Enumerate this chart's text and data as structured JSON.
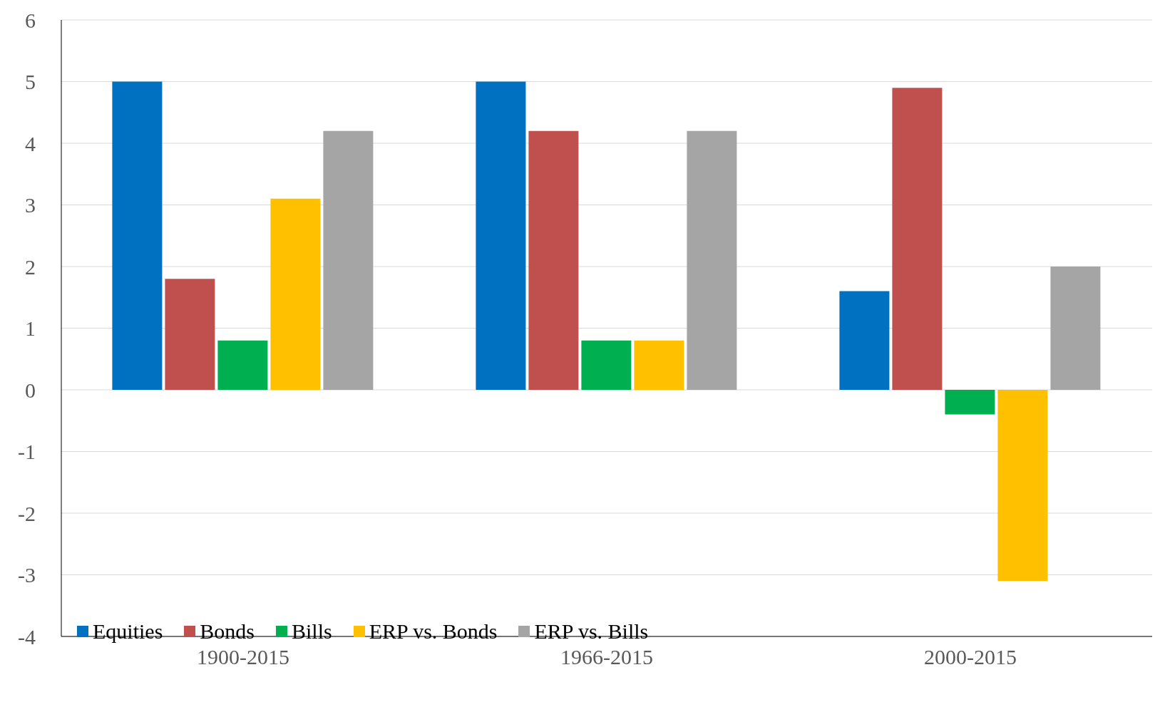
{
  "chart_data": {
    "type": "bar",
    "categories": [
      "1900-2015",
      "1966-2015",
      "2000-2015"
    ],
    "series": [
      {
        "name": "Equities",
        "color": "#0070c0",
        "values": [
          5.0,
          5.0,
          1.6
        ]
      },
      {
        "name": "Bonds",
        "color": "#c0504d",
        "values": [
          1.8,
          4.2,
          4.9
        ]
      },
      {
        "name": "Bills",
        "color": "#00b050",
        "values": [
          0.8,
          0.8,
          -0.4
        ]
      },
      {
        "name": "ERP vs. Bonds",
        "color": "#ffc000",
        "values": [
          3.1,
          0.8,
          -3.1
        ]
      },
      {
        "name": "ERP vs. Bills",
        "color": "#a5a5a5",
        "values": [
          4.2,
          4.2,
          2.0
        ]
      }
    ],
    "ylim": [
      -4,
      6
    ],
    "yticks": [
      -4,
      -3,
      -2,
      -1,
      0,
      1,
      2,
      3,
      4,
      5,
      6
    ],
    "grid": "y",
    "legend": "bottom left"
  }
}
